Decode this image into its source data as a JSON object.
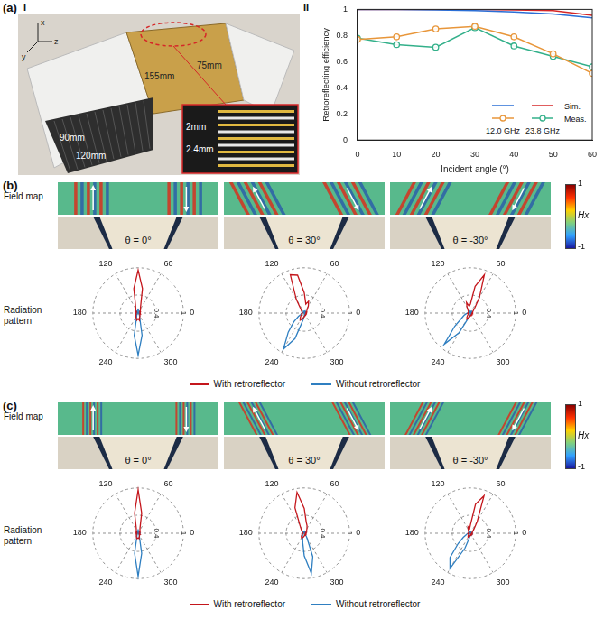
{
  "labels": {
    "a": "(a)",
    "a_I": "I",
    "a_II": "II",
    "b": "(b)",
    "c": "(c)",
    "field_map": "Field map",
    "radiation_pattern": "Radiation pattern"
  },
  "photo": {
    "dimensions": [
      "90mm",
      "120mm",
      "155mm",
      "75mm",
      "2mm",
      "2.4mm"
    ],
    "axes": [
      "x",
      "y",
      "z"
    ]
  },
  "colorbar": {
    "label": "Hx",
    "range": [
      -1,
      1
    ],
    "ticks": [
      -1,
      1
    ]
  },
  "chart_data": [
    {
      "type": "line",
      "xlabel": "Incident angle (°)",
      "ylabel": "Retroreflecting efficiency",
      "x": [
        0,
        10,
        20,
        30,
        40,
        50,
        60
      ],
      "xlim": [
        0,
        60
      ],
      "xticks": [
        0,
        10,
        20,
        30,
        40,
        50,
        60
      ],
      "ylim": [
        0,
        1
      ],
      "yticks": [
        0,
        0.2,
        0.4,
        0.6,
        0.8,
        1
      ],
      "grid": false,
      "legend": "lower right",
      "series": [
        {
          "name": "12.0 GHz",
          "group": "Sim.",
          "color": "#2b6fd6",
          "marker": "none",
          "line_style": "solid",
          "values": [
            1.0,
            1.0,
            0.995,
            0.99,
            0.98,
            0.965,
            0.935
          ]
        },
        {
          "name": "23.8 GHz",
          "group": "Sim.",
          "color": "#d62728",
          "marker": "none",
          "line_style": "solid",
          "values": [
            1.0,
            1.0,
            1.0,
            1.0,
            0.995,
            0.99,
            0.955
          ]
        },
        {
          "name": "12.0 GHz",
          "group": "Meas.",
          "color": "#e8963a",
          "marker": "circle",
          "line_style": "solid",
          "values": [
            0.77,
            0.79,
            0.85,
            0.87,
            0.79,
            0.66,
            0.51
          ]
        },
        {
          "name": "23.8 GHz",
          "group": "Meas.",
          "color": "#33b08a",
          "marker": "circle",
          "line_style": "solid",
          "values": [
            0.78,
            0.73,
            0.71,
            0.86,
            0.72,
            0.64,
            0.56
          ]
        }
      ]
    },
    {
      "type": "polar",
      "title": "θ = 0°",
      "grid": true,
      "legend": "bottom",
      "x": [
        0,
        10,
        20,
        30,
        40,
        50,
        60,
        70,
        80,
        90,
        100,
        110,
        120,
        130,
        140,
        150,
        160,
        170,
        180,
        190,
        200,
        210,
        220,
        230,
        240,
        250,
        260,
        270,
        280,
        290,
        300,
        310,
        320,
        330,
        340,
        350
      ],
      "xticks": [
        0,
        60,
        120,
        180,
        240,
        300
      ],
      "ylim": [
        0,
        1
      ],
      "yticks": [
        0.4,
        1
      ],
      "series": [
        {
          "name": "With retroreflector",
          "color": "#c4161c",
          "values": [
            0.05,
            0.04,
            0.05,
            0.06,
            0.05,
            0.08,
            0.1,
            0.16,
            0.55,
            0.95,
            0.55,
            0.16,
            0.1,
            0.08,
            0.05,
            0.06,
            0.04,
            0.05,
            0.04,
            0.05,
            0.06,
            0.05,
            0.07,
            0.08,
            0.1,
            0.12,
            0.16,
            0.12,
            0.16,
            0.1,
            0.08,
            0.06,
            0.05,
            0.06,
            0.04,
            0.05
          ]
        },
        {
          "name": "Without retroreflector",
          "color": "#2f7fc1",
          "values": [
            0.03,
            0.03,
            0.02,
            0.03,
            0.03,
            0.04,
            0.03,
            0.05,
            0.06,
            0.08,
            0.06,
            0.05,
            0.03,
            0.04,
            0.03,
            0.03,
            0.02,
            0.03,
            0.03,
            0.03,
            0.02,
            0.03,
            0.04,
            0.04,
            0.06,
            0.1,
            0.5,
            0.93,
            0.5,
            0.1,
            0.06,
            0.04,
            0.03,
            0.03,
            0.02,
            0.03
          ]
        }
      ]
    },
    {
      "type": "polar",
      "title": "θ = 30°",
      "grid": true,
      "legend": "bottom",
      "x": [
        0,
        10,
        20,
        30,
        40,
        50,
        60,
        70,
        80,
        90,
        100,
        110,
        120,
        130,
        140,
        150,
        160,
        170,
        180,
        190,
        200,
        210,
        220,
        230,
        240,
        250,
        260,
        270,
        280,
        290,
        300,
        310,
        320,
        330,
        340,
        350
      ],
      "xticks": [
        0,
        60,
        120,
        180,
        240,
        300
      ],
      "ylim": [
        0,
        1
      ],
      "yticks": [
        0.4,
        1
      ],
      "series": [
        {
          "name": "With retroreflector",
          "color": "#c4161c",
          "values": [
            0.05,
            0.04,
            0.06,
            0.05,
            0.07,
            0.1,
            0.18,
            0.28,
            0.2,
            0.45,
            0.85,
            0.9,
            0.35,
            0.12,
            0.08,
            0.06,
            0.05,
            0.04,
            0.05,
            0.06,
            0.05,
            0.07,
            0.1,
            0.14,
            0.18,
            0.14,
            0.1,
            0.08,
            0.06,
            0.05,
            0.06,
            0.05,
            0.04,
            0.05,
            0.04,
            0.05
          ]
        },
        {
          "name": "Without retroreflector",
          "color": "#2f7fc1",
          "values": [
            0.03,
            0.02,
            0.03,
            0.03,
            0.04,
            0.03,
            0.04,
            0.05,
            0.04,
            0.03,
            0.03,
            0.04,
            0.03,
            0.03,
            0.02,
            0.03,
            0.03,
            0.04,
            0.05,
            0.06,
            0.08,
            0.15,
            0.3,
            0.55,
            0.92,
            0.6,
            0.15,
            0.06,
            0.04,
            0.03,
            0.03,
            0.02,
            0.03,
            0.03,
            0.02,
            0.03
          ]
        }
      ]
    },
    {
      "type": "polar",
      "title": "θ = -30°",
      "grid": true,
      "legend": "bottom",
      "x": [
        0,
        10,
        20,
        30,
        40,
        50,
        60,
        70,
        80,
        90,
        100,
        110,
        120,
        130,
        140,
        150,
        160,
        170,
        180,
        190,
        200,
        210,
        220,
        230,
        240,
        250,
        260,
        270,
        280,
        290,
        300,
        310,
        320,
        330,
        340,
        350
      ],
      "xticks": [
        0,
        60,
        120,
        180,
        240,
        300
      ],
      "ylim": [
        0,
        1
      ],
      "yticks": [
        0.4,
        1
      ],
      "series": [
        {
          "name": "With retroreflector",
          "color": "#c4161c",
          "values": [
            0.05,
            0.04,
            0.05,
            0.06,
            0.08,
            0.15,
            0.4,
            0.9,
            0.6,
            0.2,
            0.15,
            0.25,
            0.15,
            0.08,
            0.06,
            0.05,
            0.04,
            0.05,
            0.04,
            0.06,
            0.05,
            0.06,
            0.08,
            0.12,
            0.15,
            0.1,
            0.08,
            0.06,
            0.05,
            0.06,
            0.05,
            0.04,
            0.05,
            0.04,
            0.05,
            0.04
          ]
        },
        {
          "name": "Without retroreflector",
          "color": "#2f7fc1",
          "values": [
            0.03,
            0.03,
            0.02,
            0.03,
            0.03,
            0.04,
            0.03,
            0.04,
            0.03,
            0.03,
            0.04,
            0.03,
            0.03,
            0.02,
            0.03,
            0.03,
            0.04,
            0.05,
            0.07,
            0.1,
            0.15,
            0.22,
            0.45,
            0.9,
            0.5,
            0.1,
            0.05,
            0.04,
            0.03,
            0.03,
            0.02,
            0.03,
            0.03,
            0.02,
            0.03,
            0.03
          ]
        }
      ]
    },
    {
      "type": "polar",
      "title": "θ = 0°",
      "grid": true,
      "legend": "bottom",
      "x": [
        0,
        10,
        20,
        30,
        40,
        50,
        60,
        70,
        80,
        90,
        100,
        110,
        120,
        130,
        140,
        150,
        160,
        170,
        180,
        190,
        200,
        210,
        220,
        230,
        240,
        250,
        260,
        270,
        280,
        290,
        300,
        310,
        320,
        330,
        340,
        350
      ],
      "xticks": [
        0,
        60,
        120,
        180,
        240,
        300
      ],
      "ylim": [
        0,
        1
      ],
      "yticks": [
        0.4,
        1
      ],
      "series": [
        {
          "name": "With retroreflector",
          "color": "#c4161c",
          "values": [
            0.04,
            0.03,
            0.04,
            0.05,
            0.04,
            0.06,
            0.08,
            0.12,
            0.45,
            0.96,
            0.45,
            0.12,
            0.08,
            0.06,
            0.04,
            0.05,
            0.03,
            0.04,
            0.03,
            0.04,
            0.05,
            0.04,
            0.05,
            0.06,
            0.08,
            0.1,
            0.12,
            0.1,
            0.12,
            0.08,
            0.06,
            0.05,
            0.04,
            0.05,
            0.03,
            0.04
          ]
        },
        {
          "name": "Without retroreflector",
          "color": "#2f7fc1",
          "values": [
            0.02,
            0.03,
            0.02,
            0.02,
            0.03,
            0.03,
            0.02,
            0.04,
            0.05,
            0.07,
            0.05,
            0.04,
            0.02,
            0.03,
            0.02,
            0.02,
            0.02,
            0.03,
            0.02,
            0.02,
            0.03,
            0.03,
            0.03,
            0.04,
            0.05,
            0.08,
            0.45,
            0.95,
            0.45,
            0.08,
            0.05,
            0.03,
            0.02,
            0.02,
            0.03,
            0.02
          ]
        }
      ]
    },
    {
      "type": "polar",
      "title": "θ = 30°",
      "grid": true,
      "legend": "bottom",
      "x": [
        0,
        10,
        20,
        30,
        40,
        50,
        60,
        70,
        80,
        90,
        100,
        110,
        120,
        130,
        140,
        150,
        160,
        170,
        180,
        190,
        200,
        210,
        220,
        230,
        240,
        250,
        260,
        270,
        280,
        290,
        300,
        310,
        320,
        330,
        340,
        350
      ],
      "xticks": [
        0,
        60,
        120,
        180,
        240,
        300
      ],
      "ylim": [
        0,
        1
      ],
      "yticks": [
        0.4,
        1
      ],
      "series": [
        {
          "name": "With retroreflector",
          "color": "#c4161c",
          "values": [
            0.04,
            0.03,
            0.05,
            0.04,
            0.06,
            0.08,
            0.12,
            0.18,
            0.25,
            0.55,
            0.92,
            0.6,
            0.18,
            0.1,
            0.06,
            0.05,
            0.04,
            0.03,
            0.04,
            0.05,
            0.04,
            0.06,
            0.08,
            0.1,
            0.12,
            0.1,
            0.08,
            0.06,
            0.05,
            0.04,
            0.05,
            0.04,
            0.03,
            0.04,
            0.03,
            0.04
          ]
        },
        {
          "name": "Without retroreflector",
          "color": "#2f7fc1",
          "values": [
            0.03,
            0.02,
            0.03,
            0.02,
            0.03,
            0.03,
            0.04,
            0.03,
            0.04,
            0.03,
            0.03,
            0.04,
            0.03,
            0.02,
            0.03,
            0.02,
            0.03,
            0.03,
            0.02,
            0.03,
            0.04,
            0.04,
            0.05,
            0.06,
            0.08,
            0.1,
            0.2,
            0.5,
            0.9,
            0.55,
            0.12,
            0.05,
            0.04,
            0.03,
            0.02,
            0.03
          ]
        }
      ]
    },
    {
      "type": "polar",
      "title": "θ = -30°",
      "grid": true,
      "legend": "bottom",
      "x": [
        0,
        10,
        20,
        30,
        40,
        50,
        60,
        70,
        80,
        90,
        100,
        110,
        120,
        130,
        140,
        150,
        160,
        170,
        180,
        190,
        200,
        210,
        220,
        230,
        240,
        250,
        260,
        270,
        280,
        290,
        300,
        310,
        320,
        330,
        340,
        350
      ],
      "xticks": [
        0,
        60,
        120,
        180,
        240,
        300
      ],
      "ylim": [
        0,
        1
      ],
      "yticks": [
        0.4,
        1
      ],
      "series": [
        {
          "name": "With retroreflector",
          "color": "#c4161c",
          "values": [
            0.04,
            0.03,
            0.04,
            0.05,
            0.07,
            0.12,
            0.3,
            0.88,
            0.65,
            0.18,
            0.1,
            0.15,
            0.1,
            0.06,
            0.05,
            0.04,
            0.03,
            0.04,
            0.03,
            0.05,
            0.04,
            0.05,
            0.06,
            0.08,
            0.1,
            0.08,
            0.06,
            0.05,
            0.04,
            0.05,
            0.04,
            0.03,
            0.04,
            0.03,
            0.04,
            0.03
          ]
        },
        {
          "name": "Without retroreflector",
          "color": "#2f7fc1",
          "values": [
            0.02,
            0.03,
            0.02,
            0.02,
            0.03,
            0.03,
            0.02,
            0.03,
            0.03,
            0.02,
            0.03,
            0.03,
            0.02,
            0.02,
            0.03,
            0.02,
            0.03,
            0.04,
            0.05,
            0.07,
            0.1,
            0.18,
            0.35,
            0.7,
            0.9,
            0.35,
            0.08,
            0.04,
            0.03,
            0.02,
            0.03,
            0.02,
            0.02,
            0.03,
            0.02,
            0.03
          ]
        }
      ]
    }
  ]
}
